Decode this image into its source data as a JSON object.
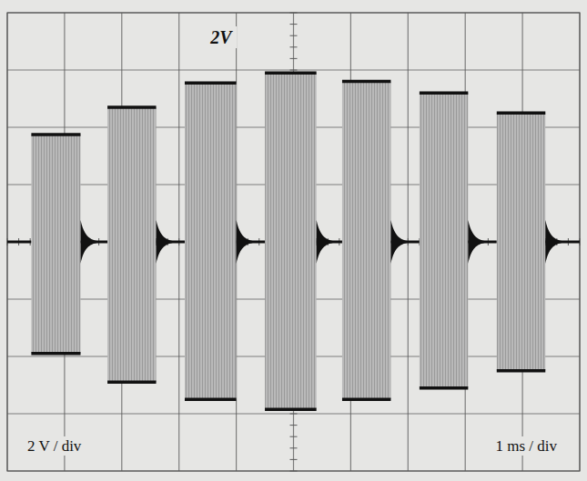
{
  "chart_data": {
    "type": "oscilloscope",
    "channel_label": "2V",
    "y_scale_label": "2 V / div",
    "x_scale_label": "1 ms / div",
    "xlim": [
      0,
      10
    ],
    "ylim": [
      -8,
      8
    ],
    "xticks": [
      0,
      1,
      2,
      3,
      4,
      5,
      6,
      7,
      8,
      9,
      10
    ],
    "yticks": [
      -8,
      -6,
      -4,
      -2,
      0,
      2,
      4,
      6,
      8
    ],
    "grid": true,
    "tick_labels": false,
    "baseline": 0,
    "bursts": {
      "start": [
        0.42,
        1.75,
        3.1,
        4.5,
        5.85,
        7.2,
        8.55
      ],
      "end": [
        1.28,
        2.6,
        4.0,
        5.4,
        6.7,
        8.05,
        9.4
      ],
      "max": [
        3.75,
        4.7,
        5.55,
        5.9,
        5.6,
        5.2,
        4.5
      ],
      "min": [
        -3.9,
        -4.9,
        -5.5,
        -5.85,
        -5.5,
        -5.1,
        -4.5
      ]
    },
    "color": "#b9b9b9"
  }
}
